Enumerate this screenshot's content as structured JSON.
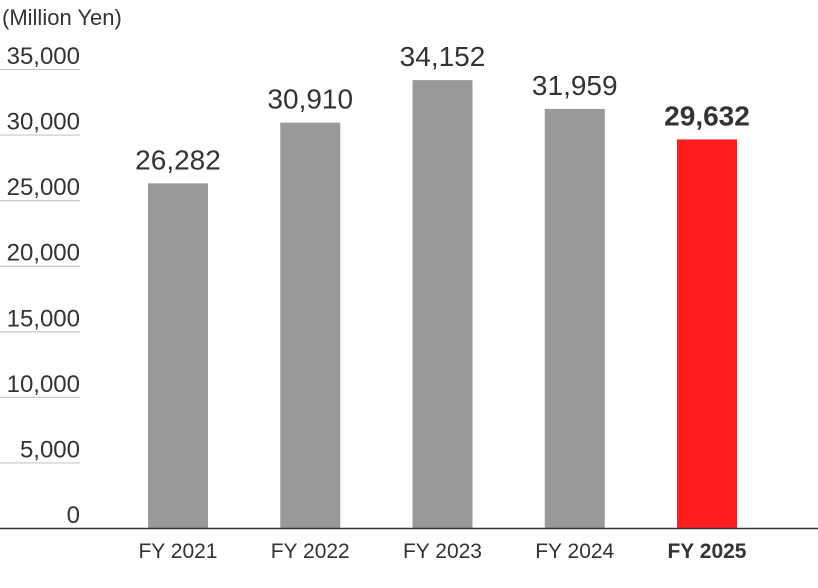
{
  "chart_data": {
    "type": "bar",
    "unit_label": "(Million Yen)",
    "categories": [
      "FY 2021",
      "FY 2022",
      "FY 2023",
      "FY 2024",
      "FY 2025"
    ],
    "values": [
      26282,
      30910,
      34152,
      31959,
      29632
    ],
    "value_labels": [
      "26,282",
      "30,910",
      "34,152",
      "31,959",
      "29,632"
    ],
    "highlight_index": 4,
    "ylim": [
      0,
      35000
    ],
    "yticks": [
      0,
      5000,
      10000,
      15000,
      20000,
      25000,
      30000,
      35000
    ],
    "ytick_labels": [
      "0",
      "5,000",
      "10,000",
      "15,000",
      "20,000",
      "25,000",
      "30,000",
      "35,000"
    ],
    "grid": true,
    "colors": {
      "bar": "#999999",
      "highlight": "#ff1d1d",
      "axis": "#333333",
      "grid": "#c8c8c8",
      "text": "#333333"
    }
  }
}
